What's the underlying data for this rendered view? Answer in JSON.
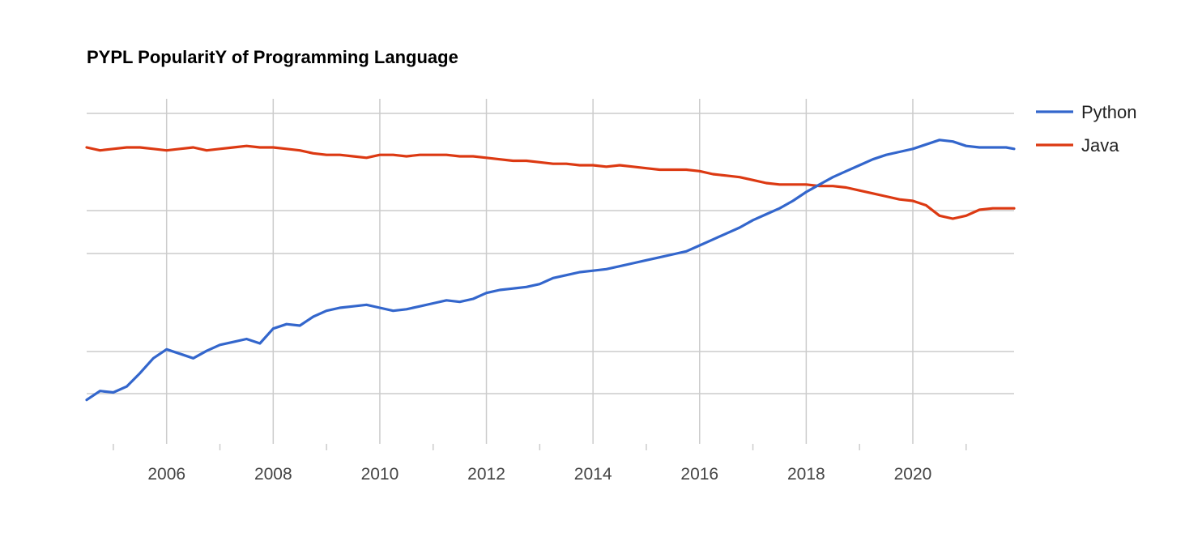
{
  "chart_data": {
    "type": "line",
    "title": "PYPL PopularitY of Programming Language",
    "xlabel": "",
    "ylabel": "",
    "xlim": [
      2004.5,
      2021.9
    ],
    "x_ticks": [
      "2006",
      "2008",
      "2010",
      "2012",
      "2014",
      "2016",
      "2018",
      "2020"
    ],
    "x_tick_values": [
      2006,
      2008,
      2010,
      2012,
      2014,
      2016,
      2018,
      2020
    ],
    "minor_tick_values": [
      2005,
      2007,
      2009,
      2011,
      2013,
      2015,
      2017,
      2019,
      2021
    ],
    "grid": true,
    "legend_position": "right",
    "colors": {
      "Python": "#3366cc",
      "Java": "#dc3912",
      "grid": "#cccccc"
    },
    "series": [
      {
        "name": "Python",
        "points": [
          [
            2004.5,
            3.4
          ],
          [
            2004.75,
            4.0
          ],
          [
            2005.0,
            3.9
          ],
          [
            2005.25,
            4.3
          ],
          [
            2005.5,
            5.2
          ],
          [
            2005.75,
            6.2
          ],
          [
            2006.0,
            6.8
          ],
          [
            2006.25,
            6.5
          ],
          [
            2006.5,
            6.2
          ],
          [
            2006.75,
            6.7
          ],
          [
            2007.0,
            7.1
          ],
          [
            2007.25,
            7.3
          ],
          [
            2007.5,
            7.5
          ],
          [
            2007.75,
            7.2
          ],
          [
            2008.0,
            8.2
          ],
          [
            2008.25,
            8.5
          ],
          [
            2008.5,
            8.4
          ],
          [
            2008.75,
            9.0
          ],
          [
            2009.0,
            9.4
          ],
          [
            2009.25,
            9.6
          ],
          [
            2009.5,
            9.7
          ],
          [
            2009.75,
            9.8
          ],
          [
            2010.0,
            9.6
          ],
          [
            2010.25,
            9.4
          ],
          [
            2010.5,
            9.5
          ],
          [
            2010.75,
            9.7
          ],
          [
            2011.0,
            9.9
          ],
          [
            2011.25,
            10.1
          ],
          [
            2011.5,
            10.0
          ],
          [
            2011.75,
            10.2
          ],
          [
            2012.0,
            10.6
          ],
          [
            2012.25,
            10.8
          ],
          [
            2012.5,
            10.9
          ],
          [
            2012.75,
            11.0
          ],
          [
            2013.0,
            11.2
          ],
          [
            2013.25,
            11.6
          ],
          [
            2013.5,
            11.8
          ],
          [
            2013.75,
            12.0
          ],
          [
            2014.0,
            12.1
          ],
          [
            2014.25,
            12.2
          ],
          [
            2014.5,
            12.4
          ],
          [
            2014.75,
            12.6
          ],
          [
            2015.0,
            12.8
          ],
          [
            2015.25,
            13.0
          ],
          [
            2015.5,
            13.2
          ],
          [
            2015.75,
            13.4
          ],
          [
            2016.0,
            13.8
          ],
          [
            2016.25,
            14.2
          ],
          [
            2016.5,
            14.6
          ],
          [
            2016.75,
            15.0
          ],
          [
            2017.0,
            15.5
          ],
          [
            2017.25,
            15.9
          ],
          [
            2017.5,
            16.3
          ],
          [
            2017.75,
            16.8
          ],
          [
            2018.0,
            17.4
          ],
          [
            2018.25,
            17.9
          ],
          [
            2018.5,
            18.4
          ],
          [
            2018.75,
            18.8
          ],
          [
            2019.0,
            19.2
          ],
          [
            2019.25,
            19.6
          ],
          [
            2019.5,
            19.9
          ],
          [
            2019.75,
            20.1
          ],
          [
            2020.0,
            20.3
          ],
          [
            2020.25,
            20.6
          ],
          [
            2020.5,
            20.9
          ],
          [
            2020.75,
            20.8
          ],
          [
            2021.0,
            20.5
          ],
          [
            2021.25,
            20.4
          ],
          [
            2021.5,
            20.4
          ],
          [
            2021.75,
            20.4
          ],
          [
            2021.9,
            20.3
          ]
        ]
      },
      {
        "name": "Java",
        "points": [
          [
            2004.5,
            20.4
          ],
          [
            2004.75,
            20.2
          ],
          [
            2005.0,
            20.3
          ],
          [
            2005.25,
            20.4
          ],
          [
            2005.5,
            20.4
          ],
          [
            2005.75,
            20.3
          ],
          [
            2006.0,
            20.2
          ],
          [
            2006.25,
            20.3
          ],
          [
            2006.5,
            20.4
          ],
          [
            2006.75,
            20.2
          ],
          [
            2007.0,
            20.3
          ],
          [
            2007.25,
            20.4
          ],
          [
            2007.5,
            20.5
          ],
          [
            2007.75,
            20.4
          ],
          [
            2008.0,
            20.4
          ],
          [
            2008.25,
            20.3
          ],
          [
            2008.5,
            20.2
          ],
          [
            2008.75,
            20.0
          ],
          [
            2009.0,
            19.9
          ],
          [
            2009.25,
            19.9
          ],
          [
            2009.5,
            19.8
          ],
          [
            2009.75,
            19.7
          ],
          [
            2010.0,
            19.9
          ],
          [
            2010.25,
            19.9
          ],
          [
            2010.5,
            19.8
          ],
          [
            2010.75,
            19.9
          ],
          [
            2011.0,
            19.9
          ],
          [
            2011.25,
            19.9
          ],
          [
            2011.5,
            19.8
          ],
          [
            2011.75,
            19.8
          ],
          [
            2012.0,
            19.7
          ],
          [
            2012.25,
            19.6
          ],
          [
            2012.5,
            19.5
          ],
          [
            2012.75,
            19.5
          ],
          [
            2013.0,
            19.4
          ],
          [
            2013.25,
            19.3
          ],
          [
            2013.5,
            19.3
          ],
          [
            2013.75,
            19.2
          ],
          [
            2014.0,
            19.2
          ],
          [
            2014.25,
            19.1
          ],
          [
            2014.5,
            19.2
          ],
          [
            2014.75,
            19.1
          ],
          [
            2015.0,
            19.0
          ],
          [
            2015.25,
            18.9
          ],
          [
            2015.5,
            18.9
          ],
          [
            2015.75,
            18.9
          ],
          [
            2016.0,
            18.8
          ],
          [
            2016.25,
            18.6
          ],
          [
            2016.5,
            18.5
          ],
          [
            2016.75,
            18.4
          ],
          [
            2017.0,
            18.2
          ],
          [
            2017.25,
            18.0
          ],
          [
            2017.5,
            17.9
          ],
          [
            2017.75,
            17.9
          ],
          [
            2018.0,
            17.9
          ],
          [
            2018.25,
            17.8
          ],
          [
            2018.5,
            17.8
          ],
          [
            2018.75,
            17.7
          ],
          [
            2019.0,
            17.5
          ],
          [
            2019.25,
            17.3
          ],
          [
            2019.5,
            17.1
          ],
          [
            2019.75,
            16.9
          ],
          [
            2020.0,
            16.8
          ],
          [
            2020.25,
            16.5
          ],
          [
            2020.5,
            15.8
          ],
          [
            2020.75,
            15.6
          ],
          [
            2021.0,
            15.8
          ],
          [
            2021.25,
            16.2
          ],
          [
            2021.5,
            16.3
          ],
          [
            2021.75,
            16.3
          ],
          [
            2021.9,
            16.3
          ]
        ]
      }
    ]
  }
}
